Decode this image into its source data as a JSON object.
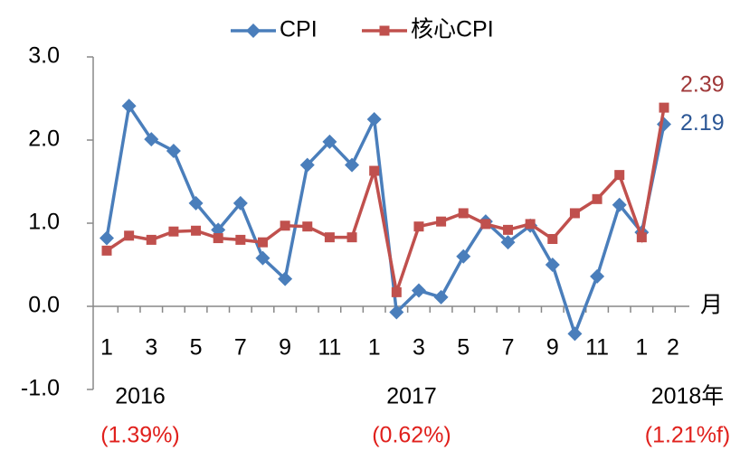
{
  "chart_data": {
    "type": "line",
    "categories": [
      "1",
      null,
      "3",
      null,
      "5",
      null,
      "7",
      null,
      "9",
      null,
      "11",
      null,
      "1",
      null,
      "3",
      null,
      "5",
      null,
      "7",
      null,
      "9",
      null,
      "11",
      null,
      "1",
      "2"
    ],
    "series": [
      {
        "name": "CPI",
        "color": "#4a7ebb",
        "marker": "diamond",
        "label_color": "#2c5796",
        "values": [
          0.82,
          2.41,
          2.01,
          1.87,
          1.24,
          0.92,
          1.24,
          0.58,
          0.33,
          1.7,
          1.98,
          1.7,
          2.25,
          -0.07,
          0.19,
          0.11,
          0.6,
          1.02,
          0.77,
          0.97,
          0.5,
          -0.33,
          0.36,
          1.22,
          0.89,
          2.19
        ]
      },
      {
        "name": "核心CPI",
        "color": "#c0504d",
        "marker": "square",
        "label_color": "#a0393a",
        "values": [
          0.67,
          0.85,
          0.8,
          0.9,
          0.91,
          0.82,
          0.8,
          0.77,
          0.97,
          0.96,
          0.83,
          0.83,
          1.63,
          0.17,
          0.96,
          1.02,
          1.12,
          0.99,
          0.92,
          0.99,
          0.81,
          1.12,
          1.29,
          1.58,
          0.83,
          2.39
        ]
      }
    ],
    "ylim": [
      -1,
      3
    ],
    "yticks": [
      {
        "value": -1,
        "label": "-1.0"
      },
      {
        "value": 0,
        "label": "0.0"
      },
      {
        "value": 1,
        "label": "1.0"
      },
      {
        "value": 2,
        "label": "2.0"
      },
      {
        "value": 3,
        "label": "3.0"
      }
    ],
    "x_unit": "月",
    "years": [
      {
        "label": "2016",
        "note": "(1.39%)"
      },
      {
        "label": "2017",
        "note": "(0.62%)"
      },
      {
        "label": "2018年",
        "note": "(1.21%f)"
      }
    ],
    "note_color": "#e0201c",
    "grid": false
  }
}
